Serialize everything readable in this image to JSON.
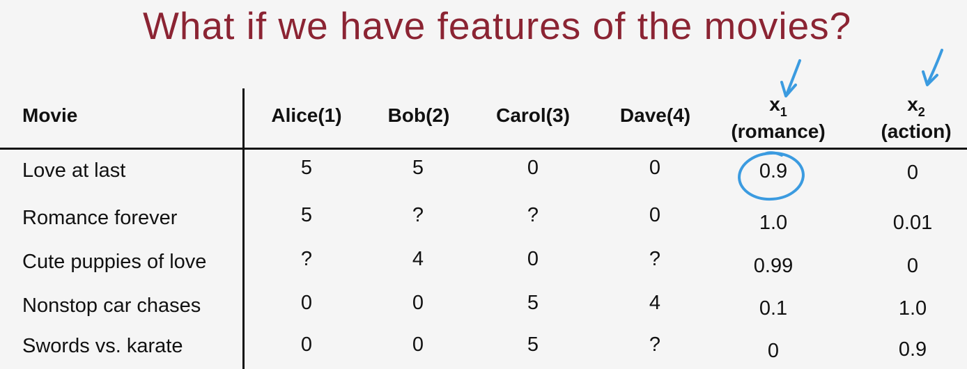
{
  "title": "What if we have features of the movies?",
  "table": {
    "headers": {
      "movie": "Movie",
      "alice": "Alice(1)",
      "bob": "Bob(2)",
      "carol": "Carol(3)",
      "dave": "Dave(4)",
      "x1_symbol": "x",
      "x1_sub": "1",
      "x1_label": "(romance)",
      "x2_symbol": "x",
      "x2_sub": "2",
      "x2_label": "(action)"
    },
    "rows": [
      {
        "movie": "Love at last",
        "alice": "5",
        "bob": "5",
        "carol": "0",
        "dave": "0",
        "x1": "0.9",
        "x2": "0"
      },
      {
        "movie": "Romance forever",
        "alice": "5",
        "bob": "?",
        "carol": "?",
        "dave": "0",
        "x1": "1.0",
        "x2": "0.01"
      },
      {
        "movie": "Cute puppies of love",
        "alice": "?",
        "bob": "4",
        "carol": "0",
        "dave": "?",
        "x1": "0.99",
        "x2": "0"
      },
      {
        "movie": "Nonstop car chases",
        "alice": "0",
        "bob": "0",
        "carol": "5",
        "dave": "4",
        "x1": "0.1",
        "x2": "1.0"
      },
      {
        "movie": "Swords vs. karate",
        "alice": "0",
        "bob": "0",
        "carol": "5",
        "dave": "?",
        "x1": "0",
        "x2": "0.9"
      }
    ]
  },
  "annotations": {
    "highlight_color": "#3b9be0",
    "title_color": "#8b2433"
  }
}
